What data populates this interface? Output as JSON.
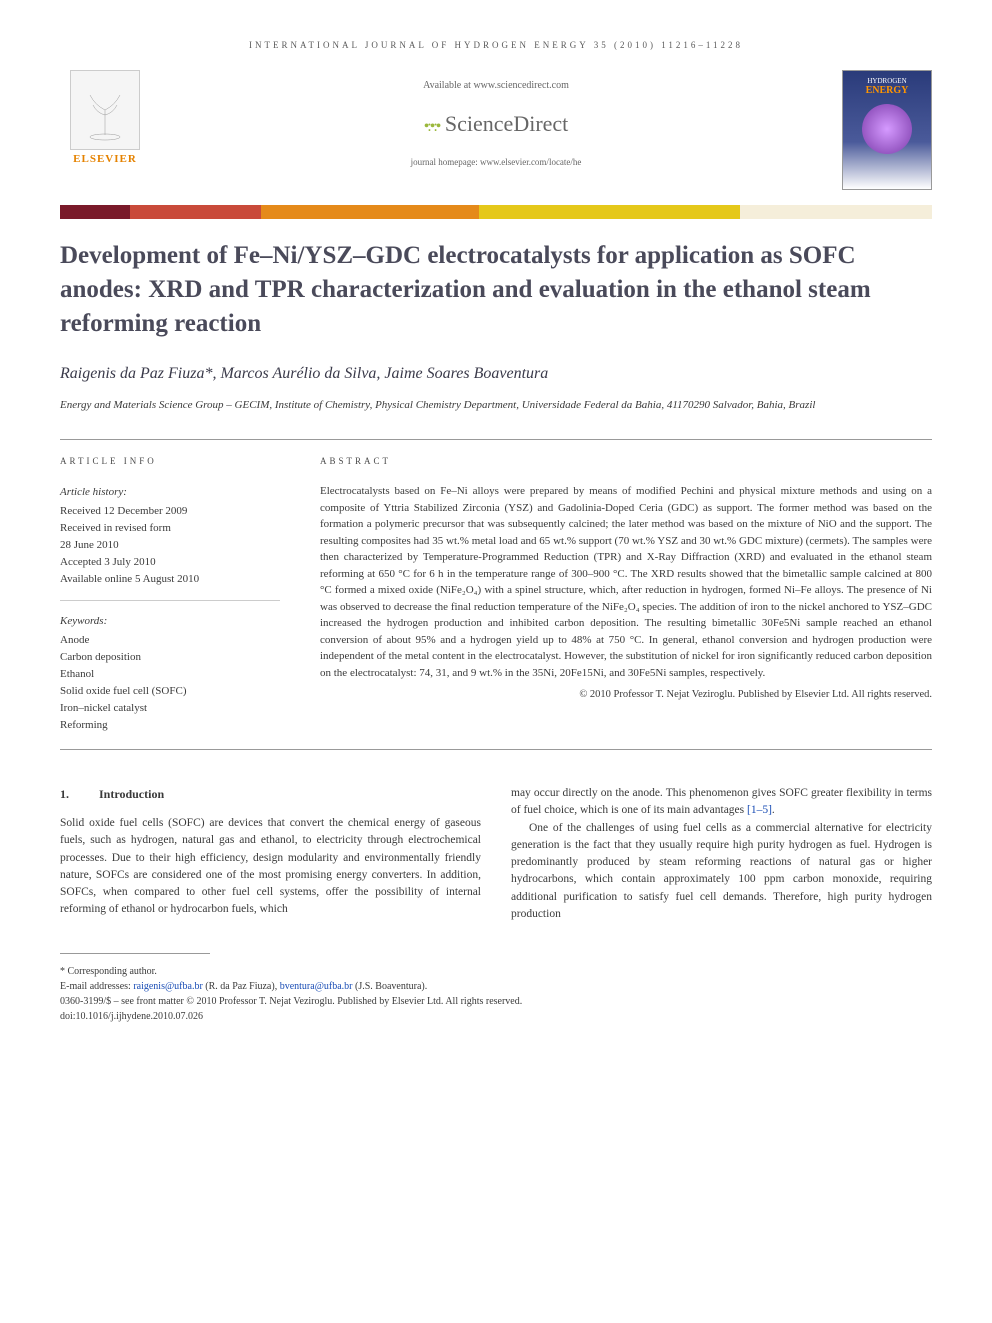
{
  "journal_header": "INTERNATIONAL JOURNAL OF HYDROGEN ENERGY 35 (2010) 11216–11228",
  "banner": {
    "available": "Available at www.sciencedirect.com",
    "sciencedirect": "ScienceDirect",
    "homepage": "journal homepage: www.elsevier.com/locate/he",
    "elsevier": "ELSEVIER",
    "cover_line1": "HYDROGEN",
    "cover_line2": "ENERGY"
  },
  "color_bar": [
    {
      "color": "#7a1a2a",
      "width": "8%"
    },
    {
      "color": "#c94a3a",
      "width": "15%"
    },
    {
      "color": "#e58a1a",
      "width": "25%"
    },
    {
      "color": "#e5c81a",
      "width": "30%"
    },
    {
      "color": "#f5eeda",
      "width": "22%"
    }
  ],
  "title": "Development of Fe–Ni/YSZ–GDC electrocatalysts for application as SOFC anodes: XRD and TPR characterization and evaluation in the ethanol steam reforming reaction",
  "authors": "Raigenis da Paz Fiuza*, Marcos Aurélio da Silva, Jaime Soares Boaventura",
  "affiliation": "Energy and Materials Science Group – GECIM, Institute of Chemistry, Physical Chemistry Department, Universidade Federal da Bahia, 41170290 Salvador, Bahia, Brazil",
  "info": {
    "heading": "ARTICLE INFO",
    "history_label": "Article history:",
    "history": [
      "Received 12 December 2009",
      "Received in revised form",
      "28 June 2010",
      "Accepted 3 July 2010",
      "Available online 5 August 2010"
    ],
    "keywords_label": "Keywords:",
    "keywords": [
      "Anode",
      "Carbon deposition",
      "Ethanol",
      "Solid oxide fuel cell (SOFC)",
      "Iron–nickel catalyst",
      "Reforming"
    ]
  },
  "abstract_heading": "ABSTRACT",
  "abstract": "Electrocatalysts based on Fe–Ni alloys were prepared by means of modified Pechini and physical mixture methods and using on a composite of Yttria Stabilized Zirconia (YSZ) and Gadolinia-Doped Ceria (GDC) as support. The former method was based on the formation a polymeric precursor that was subsequently calcined; the later method was based on the mixture of NiO and the support. The resulting composites had 35 wt.% metal load and 65 wt.% support (70 wt.% YSZ and 30 wt.% GDC mixture) (cermets). The samples were then characterized by Temperature-Programmed Reduction (TPR) and X-Ray Diffraction (XRD) and evaluated in the ethanol steam reforming at 650 °C for 6 h in the temperature range of 300–900 °C. The XRD results showed that the bimetallic sample calcined at 800 °C formed a mixed oxide (NiFe₂O₄) with a spinel structure, which, after reduction in hydrogen, formed Ni–Fe alloys. The presence of Ni was observed to decrease the final reduction temperature of the NiFe₂O₄ species. The addition of iron to the nickel anchored to YSZ–GDC increased the hydrogen production and inhibited carbon deposition. The resulting bimetallic 30Fe5Ni sample reached an ethanol conversion of about 95% and a hydrogen yield up to 48% at 750 °C. In general, ethanol conversion and hydrogen production were independent of the metal content in the electrocatalyst. However, the substitution of nickel for iron significantly reduced carbon deposition on the electrocatalyst: 74, 31, and 9 wt.% in the 35Ni, 20Fe15Ni, and 30Fe5Ni samples, respectively.",
  "copyright_abstract": "© 2010 Professor T. Nejat Veziroglu. Published by Elsevier Ltd. All rights reserved.",
  "section": {
    "number": "1.",
    "title": "Introduction"
  },
  "body": {
    "col1_p1": "Solid oxide fuel cells (SOFC) are devices that convert the chemical energy of gaseous fuels, such as hydrogen, natural gas and ethanol, to electricity through electrochemical processes. Due to their high efficiency, design modularity and environmentally friendly nature, SOFCs are considered one of the most promising energy converters. In addition, SOFCs, when compared to other fuel cell systems, offer the possibility of internal reforming of ethanol or hydrocarbon fuels, which",
    "col2_p1_pre": "may occur directly on the anode. This phenomenon gives SOFC greater flexibility in terms of fuel choice, which is one of its main advantages ",
    "col2_p1_ref": "[1–5]",
    "col2_p1_post": ".",
    "col2_p2": "One of the challenges of using fuel cells as a commercial alternative for electricity generation is the fact that they usually require high purity hydrogen as fuel. Hydrogen is predominantly produced by steam reforming reactions of natural gas or higher hydrocarbons, which contain approximately 100 ppm carbon monoxide, requiring additional purification to satisfy fuel cell demands. Therefore, high purity hydrogen production"
  },
  "footer": {
    "corresponding": "* Corresponding author.",
    "emails_label": "E-mail addresses: ",
    "email1": "raigenis@ufba.br",
    "email1_name": " (R. da Paz Fiuza), ",
    "email2": "bventura@ufba.br",
    "email2_name": " (J.S. Boaventura).",
    "issn": "0360-3199/$ – see front matter © 2010 Professor T. Nejat Veziroglu. Published by Elsevier Ltd. All rights reserved.",
    "doi": "doi:10.1016/j.ijhydene.2010.07.026"
  }
}
